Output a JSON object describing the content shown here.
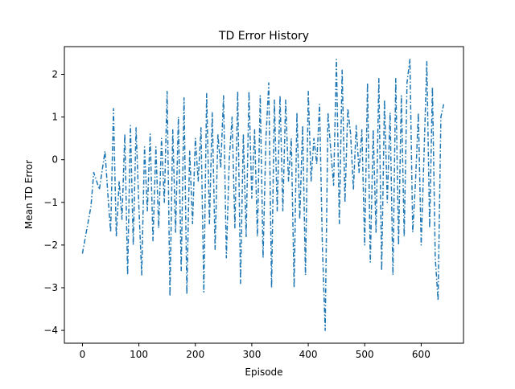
{
  "chart_data": {
    "type": "line",
    "title": "TD Error History",
    "xlabel": "Episode",
    "ylabel": "Mean TD Error",
    "xlim": [
      -32,
      675
    ],
    "ylim": [
      -4.3,
      2.65
    ],
    "xticks": [
      0,
      100,
      200,
      300,
      400,
      500,
      600
    ],
    "yticks": [
      -4,
      -3,
      -2,
      -1,
      0,
      1,
      2
    ],
    "grid": false,
    "legend": "none",
    "line_style": "dashdot",
    "colors": {
      "series": "#1f77b4",
      "axes": "#000000",
      "background": "#ffffff"
    },
    "series": [
      {
        "x": [
          0,
          15,
          20,
          30,
          40,
          45,
          50,
          55,
          60,
          65,
          70,
          75,
          80,
          85,
          90,
          95,
          100,
          105,
          110,
          115,
          120,
          125,
          130,
          135,
          140,
          145,
          150,
          155,
          160,
          165,
          170,
          175,
          180,
          185,
          190,
          195,
          200,
          205,
          210,
          215,
          220,
          225,
          230,
          235,
          240,
          245,
          250,
          255,
          260,
          265,
          270,
          275,
          280,
          285,
          290,
          295,
          300,
          305,
          310,
          315,
          320,
          325,
          330,
          335,
          340,
          345,
          350,
          355,
          360,
          365,
          370,
          375,
          380,
          385,
          390,
          395,
          400,
          405,
          410,
          415,
          420,
          425,
          430,
          435,
          440,
          445,
          450,
          455,
          460,
          465,
          470,
          475,
          480,
          485,
          490,
          495,
          500,
          505,
          510,
          515,
          520,
          525,
          530,
          535,
          540,
          545,
          550,
          555,
          560,
          565,
          570,
          575,
          580,
          585,
          590,
          595,
          600,
          605,
          610,
          615,
          620,
          625,
          630,
          635,
          640
        ],
        "y": [
          -2.2,
          -1.1,
          -0.3,
          -0.7,
          0.2,
          -0.8,
          -1.7,
          1.2,
          -1.8,
          -0.5,
          -1.4,
          0.6,
          -2.7,
          0.8,
          -2.0,
          0.75,
          -1.1,
          -2.7,
          0.3,
          -1.2,
          0.6,
          -1.9,
          0.3,
          -1.6,
          0.5,
          -1.0,
          1.6,
          -3.2,
          0.7,
          -1.7,
          1.0,
          -2.6,
          1.45,
          -3.15,
          0.2,
          -1.5,
          0.5,
          -0.5,
          0.75,
          -3.1,
          1.55,
          -1.5,
          1.1,
          -2.1,
          0.6,
          -0.2,
          1.5,
          -2.3,
          0.0,
          1.0,
          -1.6,
          1.6,
          -2.9,
          0.6,
          -1.8,
          1.6,
          -0.9,
          0.7,
          -1.8,
          1.5,
          -2.3,
          0.5,
          1.8,
          -3.0,
          1.4,
          -1.2,
          1.5,
          -1.2,
          1.4,
          -0.5,
          0.5,
          -3.0,
          1.1,
          -1.4,
          0.8,
          -2.7,
          1.6,
          -0.5,
          0.5,
          -0.1,
          1.3,
          -2.0,
          -4.0,
          1.1,
          0.2,
          -0.6,
          2.35,
          -1.5,
          2.1,
          -1.0,
          1.2,
          0.6,
          -0.7,
          0.8,
          -0.3,
          0.7,
          -2.0,
          1.8,
          -2.4,
          0.7,
          -1.7,
          1.9,
          -2.6,
          1.4,
          -1.0,
          1.1,
          -2.7,
          1.9,
          -2.0,
          1.5,
          -1.8,
          1.8,
          2.35,
          -1.7,
          -0.5,
          1.1,
          -2.0,
          0.1,
          2.3,
          -1.6,
          1.7,
          -2.3,
          -3.3,
          1.0,
          1.3
        ]
      }
    ]
  }
}
